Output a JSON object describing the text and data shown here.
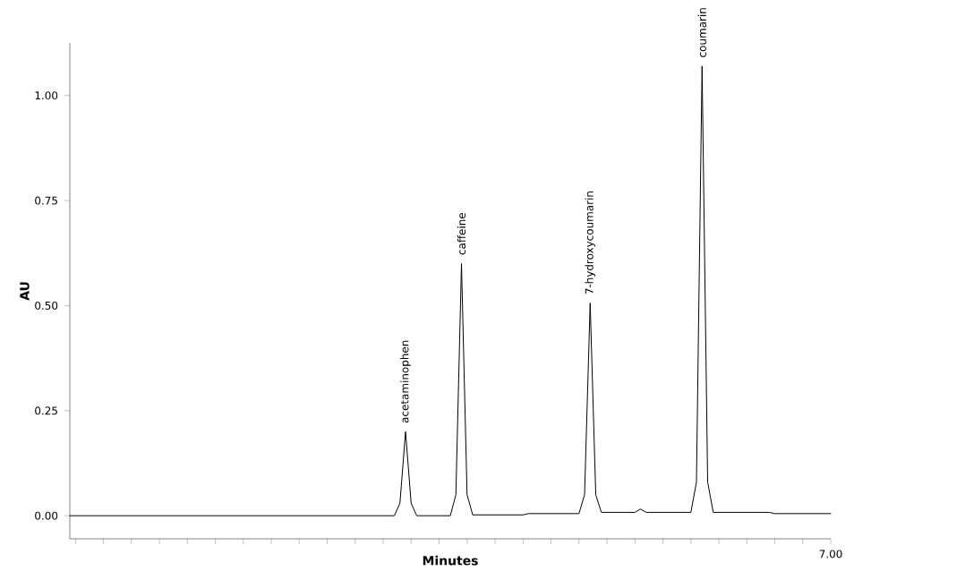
{
  "chart_data": {
    "type": "line",
    "xlabel": "Minutes",
    "ylabel": "AU",
    "categories": [
      null,
      null,
      null,
      null,
      null,
      null,
      null,
      null,
      null,
      null,
      null,
      null,
      null,
      null,
      null,
      null,
      null,
      null,
      null,
      null,
      null,
      null,
      null,
      null,
      null,
      null,
      null,
      null,
      null,
      null,
      null,
      null,
      null,
      null,
      null,
      null,
      null,
      null,
      null,
      null,
      null,
      null,
      null,
      null,
      null,
      null,
      null,
      null,
      null,
      null,
      null,
      null,
      null,
      null,
      null,
      null,
      null,
      null,
      null,
      null,
      null,
      null,
      null,
      null,
      null,
      null,
      null,
      null,
      null,
      null,
      null,
      null,
      null,
      null,
      null,
      null,
      null,
      null,
      null,
      null,
      null,
      null,
      null,
      null,
      null,
      null,
      null,
      null,
      null,
      null,
      null,
      null,
      null,
      null,
      null,
      null,
      null,
      null,
      null,
      null,
      null,
      null,
      null,
      null,
      null,
      null,
      null,
      null,
      null,
      null,
      null,
      null,
      null,
      null,
      null,
      null,
      null,
      null,
      null,
      null,
      null,
      null,
      null,
      null,
      null,
      null,
      null,
      null,
      null,
      null,
      null,
      null,
      null,
      null,
      null,
      null,
      null
    ],
    "ylim": [
      -0.055,
      1.125
    ],
    "yticks": [
      {
        "value": 0,
        "label": "0.00"
      },
      {
        "value": 0.25,
        "label": "0.25"
      },
      {
        "value": 0.5,
        "label": "0.50"
      },
      {
        "value": 0.75,
        "label": "0.75"
      },
      {
        "value": 1.0,
        "label": "1.00"
      }
    ],
    "marker": "none",
    "series": [
      {
        "color": "#000000",
        "values": [
          0,
          0,
          0,
          0,
          0,
          0,
          0,
          0,
          0,
          0,
          0,
          0,
          0,
          0,
          0,
          0,
          0,
          0,
          0,
          0,
          0,
          0,
          0,
          0,
          0,
          0,
          0,
          0,
          0,
          0,
          0,
          0,
          0,
          0,
          0,
          0,
          0,
          0,
          0,
          0,
          0,
          0,
          0,
          0,
          0,
          0,
          0,
          0,
          0,
          0,
          0,
          0,
          0,
          0,
          0,
          0,
          0,
          0,
          0,
          0.03,
          0.2,
          0.03,
          0,
          0,
          0,
          0,
          0,
          0,
          0,
          0.05,
          0.6,
          0.05,
          0.002,
          0.002,
          0.002,
          0.002,
          0.002,
          0.002,
          0.002,
          0.002,
          0.002,
          0.002,
          0.005,
          0.005,
          0.005,
          0.005,
          0.005,
          0.005,
          0.005,
          0.005,
          0.005,
          0.005,
          0.05,
          0.506,
          0.05,
          0.008,
          0.008,
          0.008,
          0.008,
          0.008,
          0.008,
          0.008,
          0.016,
          0.008,
          0.008,
          0.008,
          0.008,
          0.008,
          0.008,
          0.008,
          0.008,
          0.008,
          0.08,
          1.07,
          0.08,
          0.008,
          0.008,
          0.008,
          0.008,
          0.008,
          0.008,
          0.008,
          0.008,
          0.008,
          0.008,
          0.008,
          0.005,
          0.005,
          0.005,
          0.005,
          0.005,
          0.005,
          0.005,
          0.005,
          0.005,
          0.005,
          0.005
        ]
      }
    ],
    "annotations": [
      "7.00",
      {
        "text": "acetaminophen",
        "y": 0.2
      },
      {
        "text": "caffeine",
        "y": 0.6
      },
      {
        "text": "7-hydroxycoumarin",
        "y": 0.506
      },
      {
        "text": "coumarin",
        "y": 1.07
      }
    ]
  }
}
